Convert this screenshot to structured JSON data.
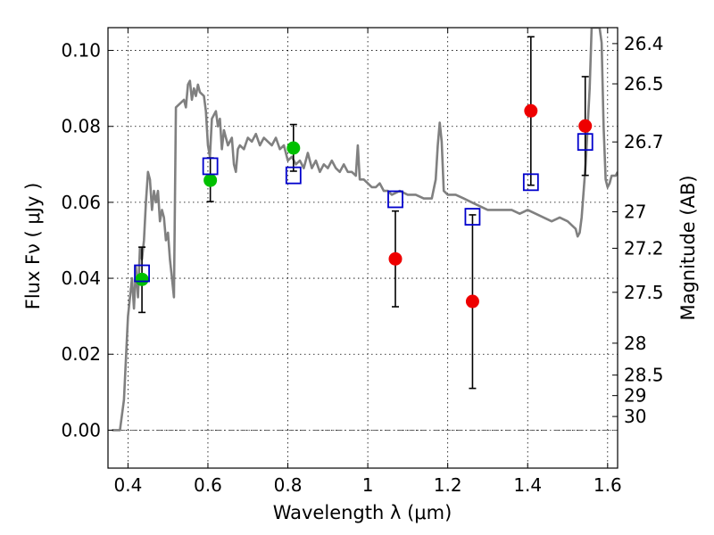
{
  "chart_data": {
    "type": "scatter",
    "xlabel": "Wavelength  λ (μm)",
    "ylabel": "Flux  Fν  ( μJy )",
    "y2label": "Magnitude (AB)",
    "xlim": [
      0.35,
      1.625
    ],
    "ylim": [
      -0.01,
      0.106
    ],
    "x_ticks": [
      0.4,
      0.6,
      0.8,
      1.0,
      1.2,
      1.4,
      1.6
    ],
    "x_tick_labels": [
      "0.4",
      "0.6",
      "0.8",
      "1",
      "1.2",
      "1.4",
      "1.6"
    ],
    "y_ticks": [
      0.0,
      0.02,
      0.04,
      0.06,
      0.08,
      0.1
    ],
    "y_tick_labels": [
      "0.00",
      "0.02",
      "0.04",
      "0.06",
      "0.08",
      "0.10"
    ],
    "y2_ticks": [
      {
        "label": "26.4",
        "flux": 0.1018
      },
      {
        "label": "26.5",
        "flux": 0.0912
      },
      {
        "label": "26.7",
        "flux": 0.0759
      },
      {
        "label": "27",
        "flux": 0.0575
      },
      {
        "label": "27.2",
        "flux": 0.0479
      },
      {
        "label": "27.5",
        "flux": 0.0363
      },
      {
        "label": "28",
        "flux": 0.0229
      },
      {
        "label": "28.5",
        "flux": 0.0145
      },
      {
        "label": "29",
        "flux": 0.0091
      },
      {
        "label": "30",
        "flux": 0.0036
      }
    ],
    "grid": true,
    "series": [
      {
        "kind": "line",
        "color": "#808080",
        "points": [
          [
            0.36,
            0.0
          ],
          [
            0.38,
            0.0
          ],
          [
            0.39,
            0.008
          ],
          [
            0.4,
            0.03
          ],
          [
            0.41,
            0.04
          ],
          [
            0.415,
            0.032
          ],
          [
            0.42,
            0.043
          ],
          [
            0.425,
            0.035
          ],
          [
            0.43,
            0.048
          ],
          [
            0.435,
            0.045
          ],
          [
            0.44,
            0.05
          ],
          [
            0.445,
            0.06
          ],
          [
            0.45,
            0.068
          ],
          [
            0.455,
            0.066
          ],
          [
            0.46,
            0.058
          ],
          [
            0.465,
            0.063
          ],
          [
            0.47,
            0.06
          ],
          [
            0.475,
            0.063
          ],
          [
            0.48,
            0.055
          ],
          [
            0.485,
            0.058
          ],
          [
            0.49,
            0.056
          ],
          [
            0.495,
            0.05
          ],
          [
            0.5,
            0.052
          ],
          [
            0.505,
            0.045
          ],
          [
            0.51,
            0.04
          ],
          [
            0.515,
            0.035
          ],
          [
            0.52,
            0.085
          ],
          [
            0.53,
            0.086
          ],
          [
            0.54,
            0.087
          ],
          [
            0.545,
            0.085
          ],
          [
            0.55,
            0.091
          ],
          [
            0.555,
            0.092
          ],
          [
            0.56,
            0.087
          ],
          [
            0.565,
            0.09
          ],
          [
            0.57,
            0.088
          ],
          [
            0.575,
            0.091
          ],
          [
            0.58,
            0.089
          ],
          [
            0.59,
            0.088
          ],
          [
            0.595,
            0.084
          ],
          [
            0.6,
            0.075
          ],
          [
            0.605,
            0.072
          ],
          [
            0.61,
            0.082
          ],
          [
            0.62,
            0.084
          ],
          [
            0.625,
            0.08
          ],
          [
            0.63,
            0.082
          ],
          [
            0.635,
            0.074
          ],
          [
            0.64,
            0.079
          ],
          [
            0.65,
            0.075
          ],
          [
            0.66,
            0.077
          ],
          [
            0.665,
            0.07
          ],
          [
            0.67,
            0.068
          ],
          [
            0.675,
            0.074
          ],
          [
            0.68,
            0.075
          ],
          [
            0.69,
            0.074
          ],
          [
            0.7,
            0.077
          ],
          [
            0.71,
            0.076
          ],
          [
            0.72,
            0.078
          ],
          [
            0.73,
            0.075
          ],
          [
            0.74,
            0.077
          ],
          [
            0.75,
            0.076
          ],
          [
            0.76,
            0.075
          ],
          [
            0.77,
            0.077
          ],
          [
            0.78,
            0.074
          ],
          [
            0.79,
            0.075
          ],
          [
            0.8,
            0.071
          ],
          [
            0.81,
            0.072
          ],
          [
            0.82,
            0.07
          ],
          [
            0.83,
            0.071
          ],
          [
            0.84,
            0.069
          ],
          [
            0.85,
            0.073
          ],
          [
            0.86,
            0.069
          ],
          [
            0.87,
            0.071
          ],
          [
            0.88,
            0.068
          ],
          [
            0.89,
            0.07
          ],
          [
            0.9,
            0.069
          ],
          [
            0.91,
            0.071
          ],
          [
            0.92,
            0.069
          ],
          [
            0.93,
            0.068
          ],
          [
            0.94,
            0.07
          ],
          [
            0.95,
            0.068
          ],
          [
            0.96,
            0.068
          ],
          [
            0.97,
            0.067
          ],
          [
            0.975,
            0.075
          ],
          [
            0.98,
            0.066
          ],
          [
            0.99,
            0.066
          ],
          [
            1.0,
            0.065
          ],
          [
            1.01,
            0.064
          ],
          [
            1.02,
            0.064
          ],
          [
            1.03,
            0.065
          ],
          [
            1.04,
            0.063
          ],
          [
            1.05,
            0.063
          ],
          [
            1.06,
            0.062
          ],
          [
            1.08,
            0.063
          ],
          [
            1.1,
            0.062
          ],
          [
            1.12,
            0.062
          ],
          [
            1.14,
            0.061
          ],
          [
            1.16,
            0.061
          ],
          [
            1.17,
            0.066
          ],
          [
            1.175,
            0.075
          ],
          [
            1.18,
            0.081
          ],
          [
            1.185,
            0.076
          ],
          [
            1.19,
            0.063
          ],
          [
            1.2,
            0.062
          ],
          [
            1.22,
            0.062
          ],
          [
            1.24,
            0.061
          ],
          [
            1.26,
            0.06
          ],
          [
            1.28,
            0.059
          ],
          [
            1.3,
            0.058
          ],
          [
            1.32,
            0.058
          ],
          [
            1.34,
            0.058
          ],
          [
            1.36,
            0.058
          ],
          [
            1.38,
            0.057
          ],
          [
            1.4,
            0.058
          ],
          [
            1.42,
            0.057
          ],
          [
            1.44,
            0.056
          ],
          [
            1.46,
            0.055
          ],
          [
            1.48,
            0.056
          ],
          [
            1.5,
            0.055
          ],
          [
            1.51,
            0.054
          ],
          [
            1.52,
            0.053
          ],
          [
            1.525,
            0.051
          ],
          [
            1.53,
            0.052
          ],
          [
            1.535,
            0.056
          ],
          [
            1.545,
            0.07
          ],
          [
            1.555,
            0.09
          ],
          [
            1.56,
            0.106
          ],
          [
            1.58,
            0.106
          ],
          [
            1.585,
            0.102
          ],
          [
            1.59,
            0.08
          ],
          [
            1.595,
            0.066
          ],
          [
            1.6,
            0.064
          ],
          [
            1.605,
            0.065
          ],
          [
            1.61,
            0.067
          ],
          [
            1.62,
            0.067
          ],
          [
            1.625,
            0.068
          ]
        ]
      },
      {
        "kind": "points",
        "marker": "filled-circle",
        "color": "#00c000",
        "points": [
          {
            "x": 0.435,
            "y": 0.0397
          },
          {
            "x": 0.606,
            "y": 0.0658
          },
          {
            "x": 0.814,
            "y": 0.0743
          }
        ]
      },
      {
        "kind": "points",
        "marker": "filled-circle",
        "color": "#ee0000",
        "points": [
          {
            "x": 1.069,
            "y": 0.0451
          },
          {
            "x": 1.262,
            "y": 0.0339
          },
          {
            "x": 1.408,
            "y": 0.0841
          },
          {
            "x": 1.544,
            "y": 0.0801
          }
        ]
      },
      {
        "kind": "points",
        "marker": "open-square",
        "color": "#0000cc",
        "points": [
          {
            "x": 0.435,
            "y": 0.0413
          },
          {
            "x": 0.606,
            "y": 0.0695
          },
          {
            "x": 0.814,
            "y": 0.0671
          },
          {
            "x": 1.069,
            "y": 0.0608
          },
          {
            "x": 1.262,
            "y": 0.0562
          },
          {
            "x": 1.408,
            "y": 0.0653
          },
          {
            "x": 1.544,
            "y": 0.0759
          }
        ]
      }
    ],
    "error_bars": [
      {
        "x": 0.435,
        "low": 0.031,
        "high": 0.0482
      },
      {
        "x": 0.606,
        "low": 0.0602,
        "high": 0.0717
      },
      {
        "x": 0.814,
        "low": 0.0682,
        "high": 0.0805
      },
      {
        "x": 1.069,
        "low": 0.0325,
        "high": 0.0577
      },
      {
        "x": 1.262,
        "low": 0.011,
        "high": 0.0567
      },
      {
        "x": 1.408,
        "low": 0.0645,
        "high": 0.1036
      },
      {
        "x": 1.544,
        "low": 0.0671,
        "high": 0.0931
      }
    ]
  }
}
